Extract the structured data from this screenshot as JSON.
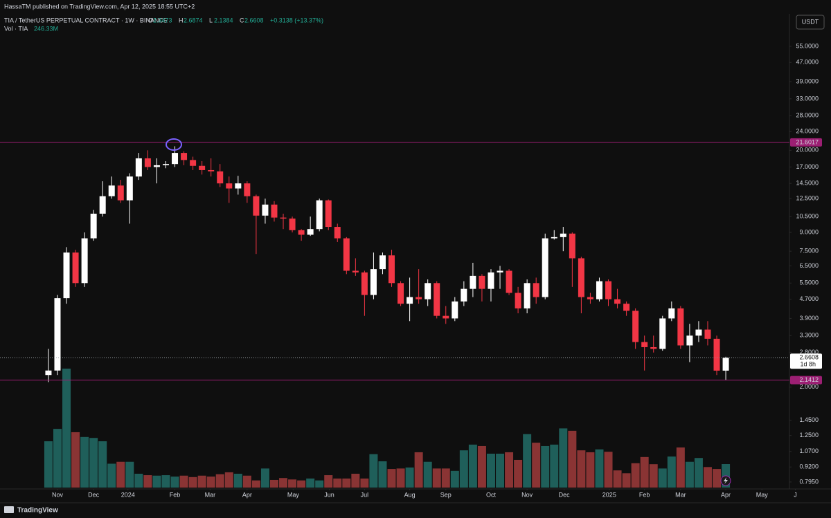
{
  "chart_data": {
    "type": "candlestick",
    "author_line": "HassaTM published on TradingView.com, Apr 12, 2025 18:55 UTC+2",
    "symbol_line": "TIA / TetherUS PERPETUAL CONTRACT · 1W · BINANCE",
    "ohlc_letters": [
      "O",
      "H",
      "L",
      "C"
    ],
    "change": "+0.3138 (+13.37%)",
    "volume_name": "Vol · TIA",
    "volume_label": "246.33M",
    "currency": "USDT",
    "countdown": "1d 8h",
    "brand": "TradingView",
    "yscale": "log",
    "grid": false,
    "ylim": [
      0.743,
      75.4
    ],
    "yticks": [
      {
        "value": 55,
        "label": "55.0000"
      },
      {
        "value": 47,
        "label": "47.0000"
      },
      {
        "value": 39,
        "label": "39.0000"
      },
      {
        "value": 33,
        "label": "33.0000"
      },
      {
        "value": 28,
        "label": "28.0000"
      },
      {
        "value": 24,
        "label": "24.0000"
      },
      {
        "value": 20,
        "label": "20.0000"
      },
      {
        "value": 17,
        "label": "17.0000"
      },
      {
        "value": 14.5,
        "label": "14.5000"
      },
      {
        "value": 12.5,
        "label": "12.5000"
      },
      {
        "value": 10.5,
        "label": "10.5000"
      },
      {
        "value": 9,
        "label": "9.0000"
      },
      {
        "value": 7.5,
        "label": "7.5000"
      },
      {
        "value": 6.5,
        "label": "6.5000"
      },
      {
        "value": 5.5,
        "label": "5.5000"
      },
      {
        "value": 4.7,
        "label": "4.7000"
      },
      {
        "value": 3.9,
        "label": "3.9000"
      },
      {
        "value": 3.3,
        "label": "3.3000"
      },
      {
        "value": 2.8,
        "label": "2.8000"
      },
      {
        "value": 2,
        "label": "2.0000"
      },
      {
        "value": 1.45,
        "label": "1.4500"
      },
      {
        "value": 1.25,
        "label": "1.2500"
      },
      {
        "value": 1.07,
        "label": "1.0700"
      },
      {
        "value": 0.92,
        "label": "0.9200"
      },
      {
        "value": 0.795,
        "label": "0.7950"
      }
    ],
    "xlim": [
      -4.75,
      82.05
    ],
    "xticks": [
      {
        "value": 1.0,
        "label": "Nov"
      },
      {
        "value": 5.0,
        "label": "Dec"
      },
      {
        "value": 8.8,
        "label": "2024"
      },
      {
        "value": 14.0,
        "label": "Feb"
      },
      {
        "value": 17.9,
        "label": "Mar"
      },
      {
        "value": 22.0,
        "label": "Apr"
      },
      {
        "value": 27.1,
        "label": "May"
      },
      {
        "value": 31.1,
        "label": "Jun"
      },
      {
        "value": 35.0,
        "label": "Jul"
      },
      {
        "value": 40.0,
        "label": "Aug"
      },
      {
        "value": 44.0,
        "label": "Sep"
      },
      {
        "value": 49.0,
        "label": "Oct"
      },
      {
        "value": 53.0,
        "label": "Nov"
      },
      {
        "value": 57.1,
        "label": "Dec"
      },
      {
        "value": 62.1,
        "label": "2025"
      },
      {
        "value": 66.0,
        "label": "Feb"
      },
      {
        "value": 70.0,
        "label": "Mar"
      },
      {
        "value": 75.0,
        "label": "Apr"
      },
      {
        "value": 79.0,
        "label": "May"
      },
      {
        "value": 82.7,
        "label": "J"
      }
    ],
    "up_color": "#ffffff",
    "down_color": "#f23645",
    "volume_up_color": "#1f5f5a",
    "volume_down_color": "#8a3434",
    "levels": [
      {
        "value": 21.6017,
        "color": "#9c1f73"
      },
      {
        "value": 2.1412,
        "color": "#9c1f73"
      }
    ],
    "open": [
      2.25,
      2.35,
      4.75,
      7.4,
      5.5,
      8.5,
      10.8,
      12.8,
      14.2,
      12.3,
      15.5,
      18.5,
      17,
      17.3,
      17.5,
      19.5,
      18.2,
      17.2,
      16.5,
      16.3,
      14.5,
      13.8,
      14.5,
      12.8,
      10.6,
      11.8,
      10.4,
      10.3,
      9.2,
      8.8,
      9.3,
      12.3,
      9.5,
      8.5,
      6.2,
      6.1,
      4.9,
      6.3,
      7.2,
      5.5,
      4.5,
      4.8,
      4.7,
      5.5,
      4.0,
      3.9,
      4.6,
      5.2,
      5.9,
      5.2,
      6.1,
      6.2,
      5.0,
      4.3,
      5.5,
      4.8,
      8.5,
      8.6,
      8.9,
      7.0,
      4.8,
      4.7,
      5.6,
      4.7,
      4.5,
      4.2,
      3.1,
      2.95,
      2.9,
      3.9,
      4.3,
      3.0,
      3.3,
      3.5,
      3.2,
      2.3473
    ],
    "high": [
      2.9,
      4.9,
      7.8,
      7.6,
      9.0,
      11.2,
      14.8,
      15.5,
      15.0,
      16.0,
      19.5,
      20.0,
      18.5,
      18.0,
      20.8,
      19.8,
      18.8,
      18.0,
      18.5,
      17.5,
      15.5,
      15.6,
      14.8,
      13.0,
      12.5,
      12.2,
      10.8,
      10.5,
      9.3,
      10.5,
      12.5,
      12.4,
      9.8,
      8.6,
      7.0,
      6.2,
      7.4,
      7.4,
      7.6,
      5.6,
      5.8,
      6.3,
      5.7,
      5.6,
      4.4,
      4.8,
      5.6,
      6.7,
      6.0,
      6.3,
      6.5,
      6.3,
      5.3,
      5.7,
      5.8,
      8.9,
      9.2,
      9.5,
      9.0,
      7.1,
      5.0,
      5.8,
      5.7,
      5.2,
      4.6,
      4.3,
      3.3,
      3.3,
      4.0,
      4.6,
      4.4,
      3.7,
      3.8,
      3.8,
      3.3,
      2.6874
    ],
    "low": [
      2.1,
      2.25,
      4.5,
      5.3,
      5.3,
      8.3,
      10.5,
      12.5,
      12.0,
      9.8,
      15.0,
      16.5,
      14.5,
      16.8,
      17.0,
      17.3,
      16.5,
      15.8,
      15.5,
      14.0,
      12.0,
      13.0,
      12.0,
      7.3,
      9.8,
      10.0,
      9.3,
      9.0,
      8.3,
      8.7,
      9.1,
      9.2,
      8.2,
      6.0,
      5.9,
      4.0,
      4.7,
      6.0,
      5.3,
      4.4,
      3.8,
      4.5,
      4.4,
      3.9,
      3.7,
      3.8,
      4.4,
      4.8,
      4.6,
      4.6,
      5.2,
      4.9,
      4.1,
      4.1,
      4.5,
      4.7,
      8.4,
      7.5,
      5.3,
      4.1,
      4.5,
      4.6,
      4.4,
      4.3,
      4.0,
      2.9,
      2.35,
      2.8,
      2.85,
      3.8,
      2.9,
      2.55,
      3.1,
      3.0,
      2.25,
      2.1384
    ],
    "close": [
      2.35,
      4.75,
      7.4,
      5.5,
      8.5,
      10.8,
      12.8,
      14.2,
      12.3,
      15.5,
      18.5,
      17,
      17.3,
      17.5,
      19.5,
      18.2,
      17.2,
      16.5,
      16.3,
      14.5,
      13.8,
      14.5,
      12.8,
      10.6,
      11.8,
      10.4,
      10.3,
      9.2,
      8.8,
      9.3,
      12.3,
      9.5,
      8.5,
      6.2,
      6.1,
      4.9,
      6.3,
      7.2,
      5.5,
      4.5,
      4.8,
      4.7,
      5.5,
      4.0,
      3.9,
      4.6,
      5.2,
      5.9,
      5.2,
      6.1,
      6.2,
      5.0,
      4.3,
      5.5,
      4.8,
      8.5,
      8.6,
      8.9,
      7.0,
      4.8,
      4.7,
      5.6,
      4.7,
      4.5,
      4.2,
      3.1,
      2.95,
      2.9,
      3.9,
      4.3,
      3.0,
      3.3,
      3.5,
      3.2,
      2.3473,
      2.6608
    ],
    "volume": [
      485,
      615,
      1246,
      580,
      530,
      520,
      485,
      250,
      270,
      270,
      145,
      130,
      125,
      130,
      115,
      125,
      110,
      125,
      115,
      140,
      160,
      145,
      125,
      75,
      200,
      80,
      100,
      85,
      75,
      95,
      75,
      130,
      95,
      95,
      145,
      95,
      350,
      275,
      195,
      200,
      210,
      370,
      270,
      200,
      200,
      175,
      390,
      450,
      435,
      355,
      355,
      370,
      290,
      560,
      470,
      435,
      450,
      620,
      595,
      390,
      370,
      400,
      375,
      180,
      150,
      255,
      320,
      245,
      200,
      325,
      420,
      270,
      310,
      215,
      195,
      246.33
    ]
  }
}
